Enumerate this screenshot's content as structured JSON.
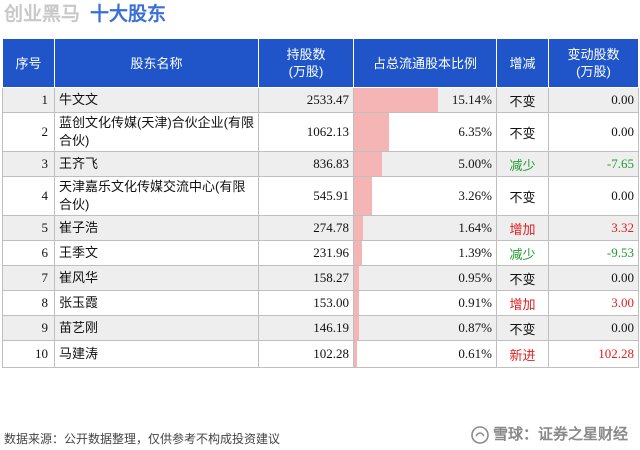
{
  "header": {
    "title": "创业黑马",
    "subtitle": "十大股东"
  },
  "table": {
    "columns": [
      "序号",
      "股东名称",
      "持股数\n(万股)",
      "占总流通股本比例",
      "增减",
      "变动股数\n(万股)"
    ],
    "rows": [
      {
        "no": "1",
        "name": "牛文文",
        "shares": "2533.47",
        "pct": "15.14%",
        "pct_value": 15.14,
        "change": "不变",
        "delta": "0.00"
      },
      {
        "no": "2",
        "name": "蓝创文化传媒(天津)合伙企业(有限合伙)",
        "shares": "1062.13",
        "pct": "6.35%",
        "pct_value": 6.35,
        "change": "不变",
        "delta": "0.00"
      },
      {
        "no": "3",
        "name": "王齐飞",
        "shares": "836.83",
        "pct": "5.00%",
        "pct_value": 5.0,
        "change": "减少",
        "delta": "-7.65"
      },
      {
        "no": "4",
        "name": "天津嘉乐文化传媒交流中心(有限合伙)",
        "shares": "545.91",
        "pct": "3.26%",
        "pct_value": 3.26,
        "change": "不变",
        "delta": "0.00"
      },
      {
        "no": "5",
        "name": "崔子浩",
        "shares": "274.78",
        "pct": "1.64%",
        "pct_value": 1.64,
        "change": "增加",
        "delta": "3.32"
      },
      {
        "no": "6",
        "name": "王季文",
        "shares": "231.96",
        "pct": "1.39%",
        "pct_value": 1.39,
        "change": "减少",
        "delta": "-9.53"
      },
      {
        "no": "7",
        "name": "崔风华",
        "shares": "158.27",
        "pct": "0.95%",
        "pct_value": 0.95,
        "change": "不变",
        "delta": "0.00"
      },
      {
        "no": "8",
        "name": "张玉霞",
        "shares": "153.00",
        "pct": "0.91%",
        "pct_value": 0.91,
        "change": "增加",
        "delta": "3.00"
      },
      {
        "no": "9",
        "name": "苗艺刚",
        "shares": "146.19",
        "pct": "0.87%",
        "pct_value": 0.87,
        "change": "不变",
        "delta": "0.00"
      },
      {
        "no": "10",
        "name": "马建涛",
        "shares": "102.28",
        "pct": "0.61%",
        "pct_value": 0.61,
        "change": "新进",
        "delta": "102.28"
      }
    ]
  },
  "footer": {
    "source": "数据来源：公开数据整理，仅供参考不构成投资建议",
    "brand": "雪球：证券之星财经"
  },
  "colors": {
    "header_bg": "#1f55c8",
    "bar": "#f6b5b5",
    "increase": "#e02020",
    "decrease": "#1e9c2e"
  },
  "icons": {
    "brand_logo": "snowball-logo-icon"
  }
}
